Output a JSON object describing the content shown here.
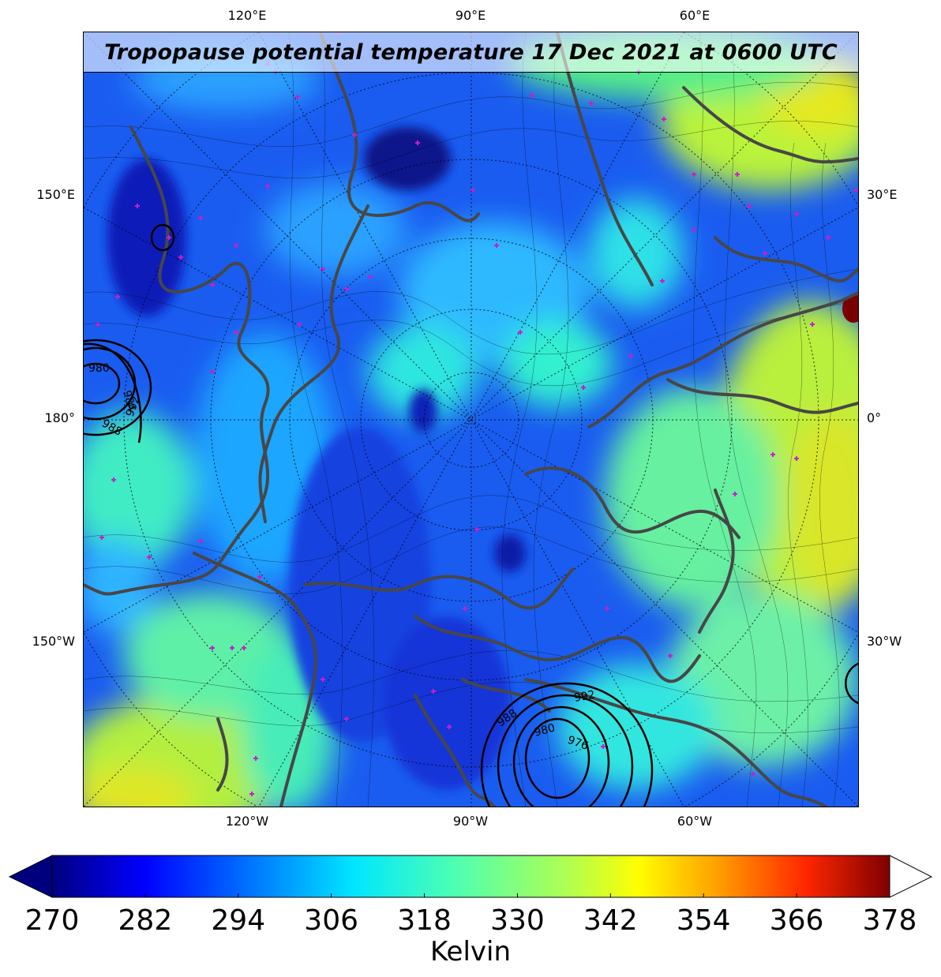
{
  "title": "Tropopause potential temperature 17 Dec 2021 at 0600 UTC",
  "colors": {
    "land_outline": "#474747",
    "contour_line": "#000000",
    "station_marker": "#c81fc8",
    "frame": "#000000"
  },
  "lon_ticks_top": [
    "120°E",
    "90°E",
    "60°E"
  ],
  "lon_ticks_bottom": [
    "120°W",
    "90°W",
    "60°W"
  ],
  "lat_ticks_left": [
    "150°E",
    "180°",
    "150°W"
  ],
  "lat_ticks_right": [
    "30°E",
    "0°",
    "30°W"
  ],
  "pressure_labels": [
    "980",
    "984",
    "988",
    "992",
    "988",
    "980",
    "976",
    "992",
    "988"
  ],
  "colorbar": {
    "ticks": [
      "270",
      "282",
      "294",
      "306",
      "318",
      "330",
      "342",
      "354",
      "366",
      "378"
    ],
    "unit_label": "Kelvin",
    "min": 270,
    "max": 378,
    "extend": "both",
    "colormap": "jet"
  }
}
